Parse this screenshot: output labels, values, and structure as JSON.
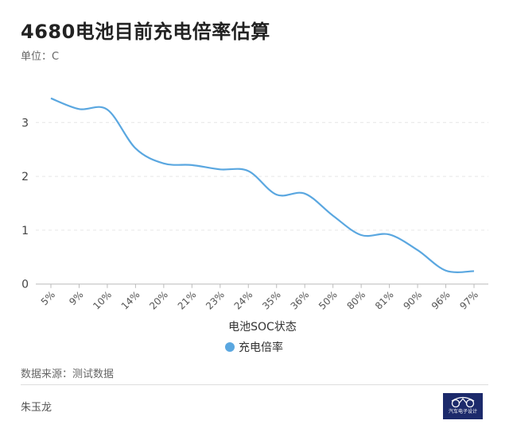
{
  "chart_data": {
    "type": "line",
    "title": "4680电池目前充电倍率估算",
    "subtitle": "单位：C",
    "xlabel": "电池SOC状态",
    "ylabel": "",
    "categories": [
      "5%",
      "9%",
      "10%",
      "14%",
      "20%",
      "21%",
      "23%",
      "24%",
      "35%",
      "36%",
      "50%",
      "80%",
      "81%",
      "90%",
      "96%",
      "97%"
    ],
    "series": [
      {
        "name": "充电倍率",
        "values": [
          3.45,
          3.25,
          3.24,
          2.52,
          2.24,
          2.21,
          2.13,
          2.1,
          1.66,
          1.68,
          1.27,
          0.91,
          0.92,
          0.63,
          0.25,
          0.24
        ],
        "color": "#5aa7e0"
      }
    ],
    "ylim": [
      0,
      3.5
    ],
    "yticks": [
      "0",
      "1",
      "2",
      "3"
    ],
    "grid": true,
    "legend": "bottom-center",
    "smooth": true
  },
  "footer": {
    "source": "数据来源：测试数据",
    "author": "朱玉龙",
    "logo_text": "汽车电子设计"
  }
}
